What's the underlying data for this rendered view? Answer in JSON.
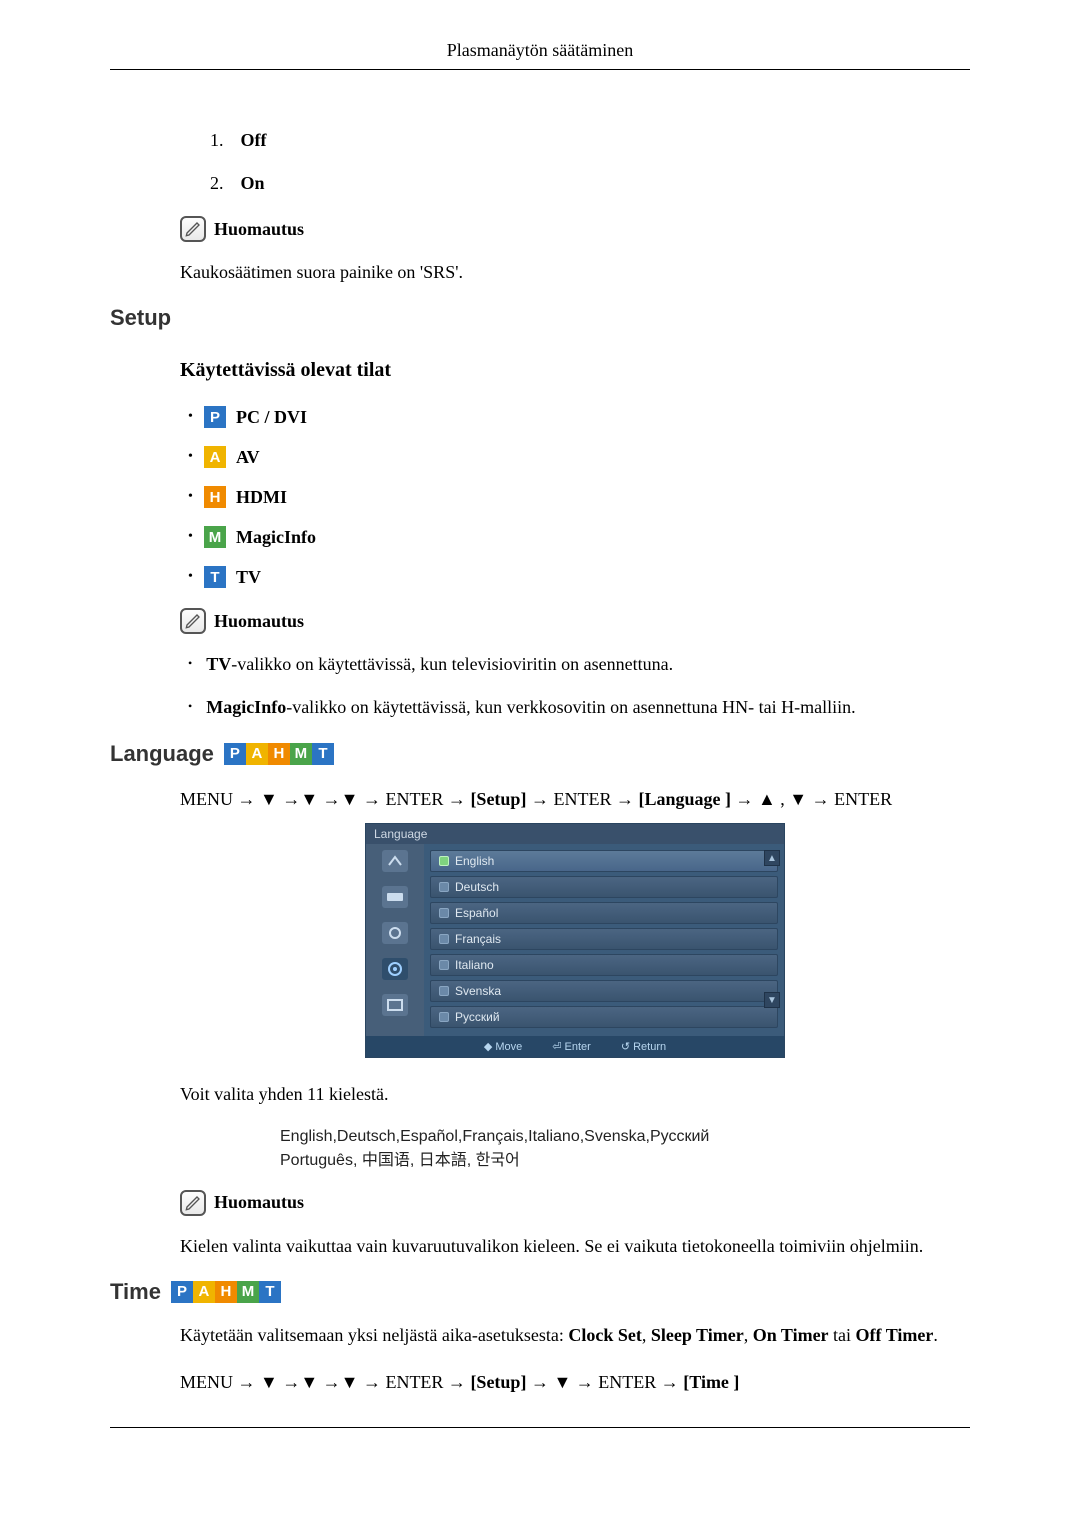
{
  "header": {
    "title": "Plasmanäytön säätäminen"
  },
  "srs": {
    "options": [
      {
        "num": "1.",
        "label": "Off"
      },
      {
        "num": "2.",
        "label": "On"
      }
    ],
    "note_label": "Huomautus",
    "note_text": "Kaukosäätimen suora painike on 'SRS'."
  },
  "setup": {
    "title": "Setup",
    "modes_heading": "Käytettävissä olevat tilat",
    "modes": [
      {
        "letter": "P",
        "color": "#2b74c4",
        "label": "PC / DVI"
      },
      {
        "letter": "A",
        "color": "#f0b400",
        "label": "AV"
      },
      {
        "letter": "H",
        "color": "#f08a00",
        "label": "HDMI"
      },
      {
        "letter": "M",
        "color": "#4aa44a",
        "label": "MagicInfo"
      },
      {
        "letter": "T",
        "color": "#2b74c4",
        "label": "TV"
      }
    ],
    "note_label": "Huomautus",
    "notes": [
      {
        "bold": "TV",
        "rest": "-valikko on käytettävissä, kun televisioviritin on asennettuna."
      },
      {
        "bold": "MagicInfo",
        "rest": "-valikko on käytettävissä, kun verkkosovitin on asennettuna HN- tai H-malliin."
      }
    ]
  },
  "badge_strip": [
    {
      "letter": "P",
      "color": "#2b74c4"
    },
    {
      "letter": "A",
      "color": "#f0b400"
    },
    {
      "letter": "H",
      "color": "#f08a00"
    },
    {
      "letter": "M",
      "color": "#4aa44a"
    },
    {
      "letter": "T",
      "color": "#2b74c4"
    }
  ],
  "language": {
    "title": "Language",
    "path_prefix": "MENU → ▼ →▼ →▼ → ENTER → ",
    "path_setup": "[Setup]",
    "path_mid": " → ENTER → ",
    "path_lang": "[Language ]",
    "path_suffix": " → ▲ , ▼ → ENTER",
    "osd": {
      "title": "Language",
      "items": [
        "English",
        "Deutsch",
        "Español",
        "Français",
        "Italiano",
        "Svenska",
        "Русский"
      ],
      "foot": [
        "◆ Move",
        "⏎ Enter",
        "↺ Return"
      ]
    },
    "intro": "Voit valita yhden 11 kielestä.",
    "lang_list_1": "English,Deutsch,Español,Français,Italiano,Svenska,Русский",
    "lang_list_2": "Português, 中国语, 日本語, 한국어",
    "note_label": "Huomautus",
    "note_text": "Kielen valinta vaikuttaa vain kuvaruutuvalikon kieleen. Se ei vaikuta tietokoneella toimiviin ohjelmiin."
  },
  "time": {
    "title": "Time",
    "desc_prefix": "Käytetään valitsemaan yksi neljästä aika-asetuksesta: ",
    "opts": [
      "Clock Set",
      "Sleep Timer",
      "On Timer",
      "Off Timer"
    ],
    "path": "MENU → ▼ →▼ →▼ → ENTER → ",
    "path_setup": "[Setup]",
    "path_mid": " → ▼ → ENTER → ",
    "path_time": "[Time ]"
  }
}
